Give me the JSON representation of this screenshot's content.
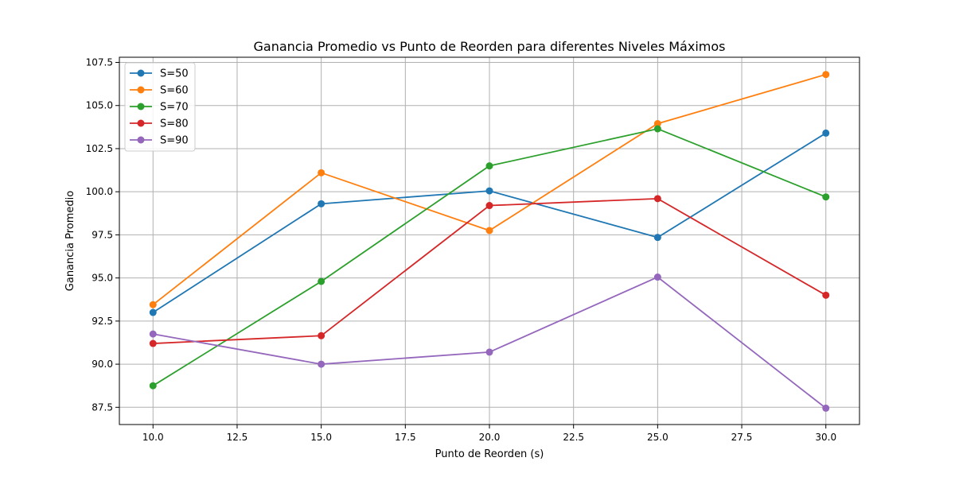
{
  "chart_data": {
    "type": "line",
    "title": "Ganancia Promedio vs Punto de Reorden para diferentes Niveles Máximos",
    "xlabel": "Punto de Reorden (s)",
    "ylabel": "Ganancia Promedio",
    "xlim": [
      9.0,
      31.0
    ],
    "ylim": [
      86.5,
      107.8
    ],
    "xticks": [
      10.0,
      12.5,
      15.0,
      17.5,
      20.0,
      22.5,
      25.0,
      27.5,
      30.0
    ],
    "xtick_labels": [
      "10.0",
      "12.5",
      "15.0",
      "17.5",
      "20.0",
      "22.5",
      "25.0",
      "27.5",
      "30.0"
    ],
    "yticks": [
      87.5,
      90.0,
      92.5,
      95.0,
      97.5,
      100.0,
      102.5,
      105.0,
      107.5
    ],
    "ytick_labels": [
      "87.5",
      "90.0",
      "92.5",
      "95.0",
      "97.5",
      "100.0",
      "102.5",
      "105.0",
      "107.5"
    ],
    "grid": true,
    "legend_position": "top-left",
    "x": [
      10,
      15,
      20,
      25,
      30
    ],
    "series": [
      {
        "name": "S=50",
        "color": "#1f77b4",
        "values": [
          93.0,
          99.3,
          100.05,
          97.35,
          103.4
        ]
      },
      {
        "name": "S=60",
        "color": "#ff7f0e",
        "values": [
          93.45,
          101.1,
          97.75,
          103.95,
          106.8
        ]
      },
      {
        "name": "S=70",
        "color": "#2ca02c",
        "values": [
          88.75,
          94.8,
          101.5,
          103.65,
          99.7
        ]
      },
      {
        "name": "S=80",
        "color": "#d62728",
        "values": [
          91.2,
          91.65,
          99.2,
          99.6,
          94.0
        ]
      },
      {
        "name": "S=90",
        "color": "#9467bd",
        "values": [
          91.75,
          90.0,
          90.7,
          95.05,
          87.45
        ]
      }
    ]
  }
}
